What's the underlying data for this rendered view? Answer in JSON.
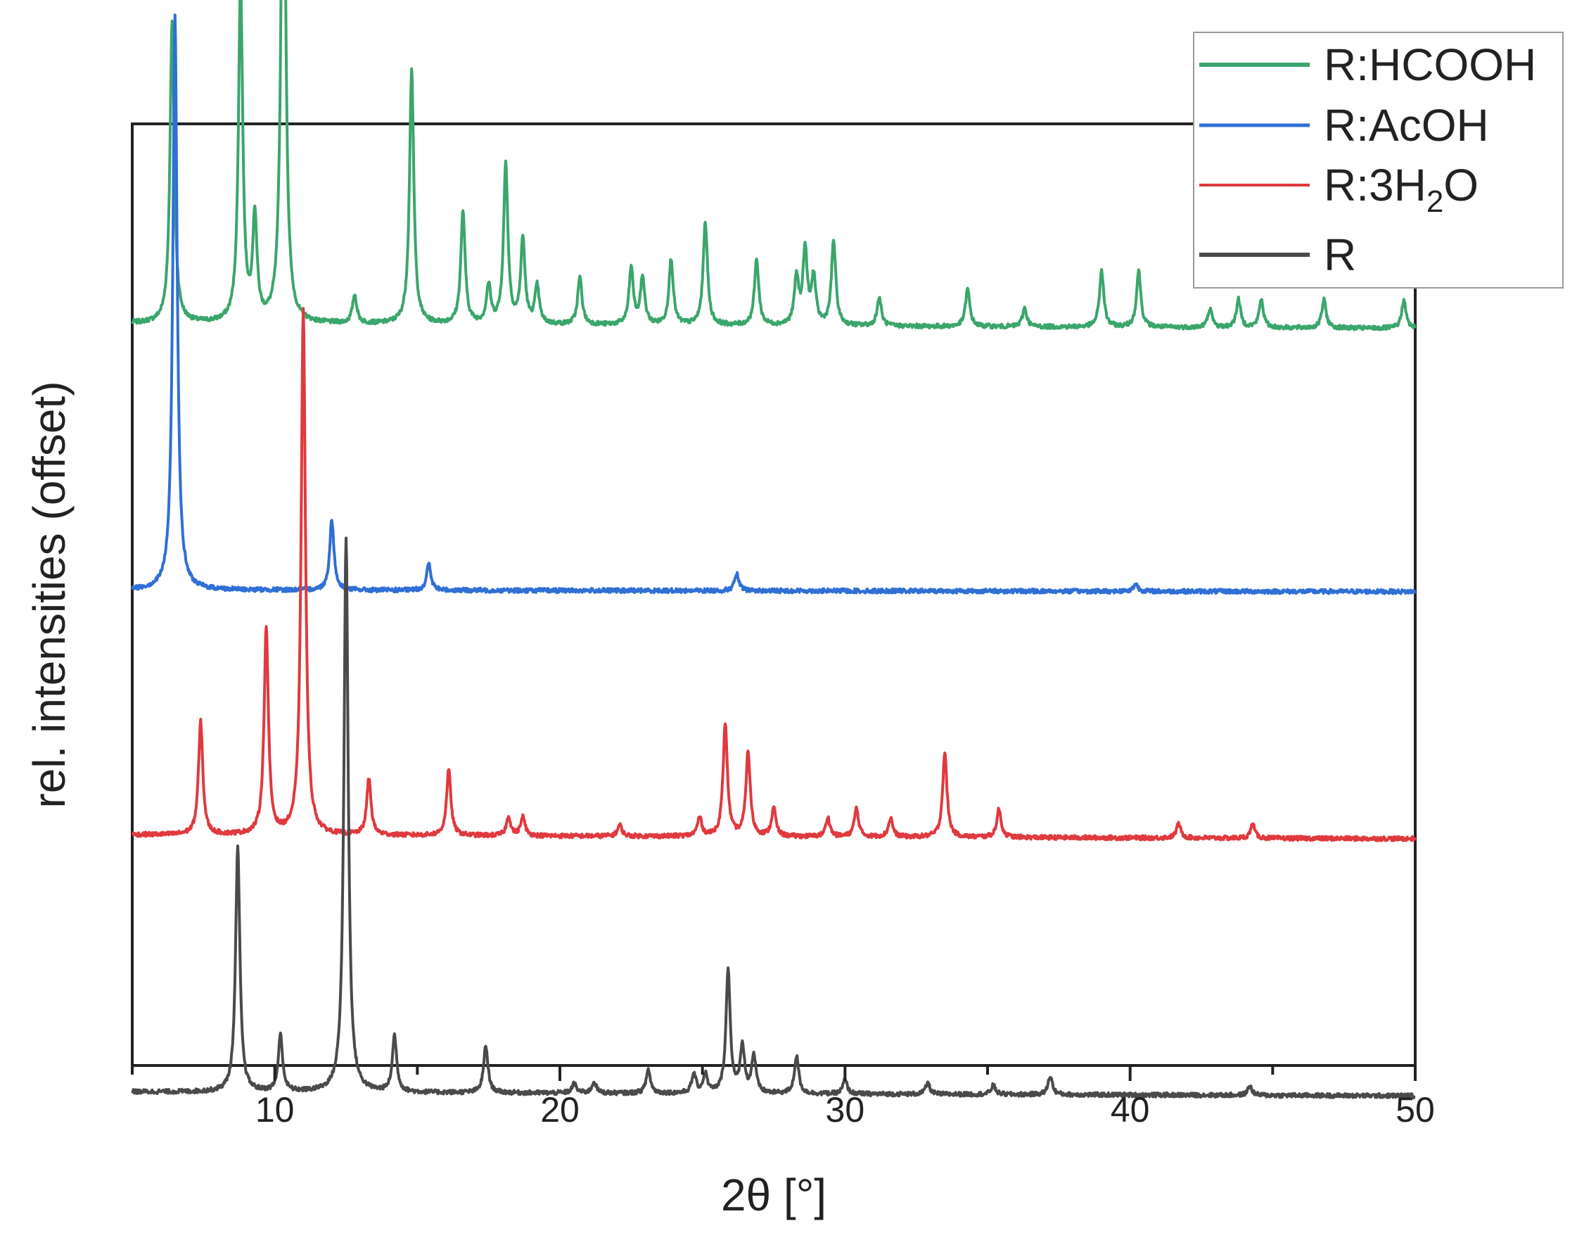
{
  "chart_data": {
    "type": "line",
    "title": "",
    "xlabel": "2θ [°]",
    "ylabel": "rel. intensities (offset)",
    "xlim": [
      5,
      50
    ],
    "x_ticks": [
      10,
      20,
      30,
      40,
      50
    ],
    "y_ticks_labeled": false,
    "grid": false,
    "legend_position": "top-right",
    "series": [
      {
        "name": "R:HCOOH",
        "color": "#3aa66b",
        "offset": 0.773,
        "baseline": 0.015,
        "peaks": [
          [
            6.4,
            0.32
          ],
          [
            8.8,
            0.36
          ],
          [
            9.3,
            0.11
          ],
          [
            10.3,
            0.64
          ],
          [
            12.8,
            0.03
          ],
          [
            14.8,
            0.27
          ],
          [
            16.6,
            0.12
          ],
          [
            17.5,
            0.04
          ],
          [
            18.1,
            0.17
          ],
          [
            18.7,
            0.09
          ],
          [
            19.2,
            0.04
          ],
          [
            20.7,
            0.05
          ],
          [
            22.5,
            0.06
          ],
          [
            22.9,
            0.05
          ],
          [
            23.9,
            0.07
          ],
          [
            25.1,
            0.11
          ],
          [
            26.9,
            0.07
          ],
          [
            28.3,
            0.05
          ],
          [
            28.6,
            0.08
          ],
          [
            28.9,
            0.05
          ],
          [
            29.6,
            0.09
          ],
          [
            31.2,
            0.03
          ],
          [
            34.3,
            0.04
          ],
          [
            36.3,
            0.02
          ],
          [
            39.0,
            0.06
          ],
          [
            40.3,
            0.06
          ],
          [
            42.8,
            0.02
          ],
          [
            43.8,
            0.03
          ],
          [
            44.6,
            0.03
          ],
          [
            46.8,
            0.03
          ],
          [
            49.6,
            0.03
          ]
        ]
      },
      {
        "name": "R:AcOH",
        "color": "#2f6fd6",
        "offset": 0.5,
        "baseline": 0.005,
        "peaks": [
          [
            6.5,
            0.61
          ],
          [
            12.0,
            0.075
          ],
          [
            15.4,
            0.028
          ],
          [
            26.2,
            0.018
          ],
          [
            40.2,
            0.008
          ]
        ]
      },
      {
        "name": "R:3H₂O",
        "color": "#e0393e",
        "offset": 0.233,
        "baseline": 0.012,
        "peaks": [
          [
            7.4,
            0.12
          ],
          [
            9.7,
            0.22
          ],
          [
            11.0,
            0.56
          ],
          [
            13.3,
            0.06
          ],
          [
            16.1,
            0.07
          ],
          [
            18.2,
            0.02
          ],
          [
            18.7,
            0.02
          ],
          [
            22.1,
            0.012
          ],
          [
            24.9,
            0.02
          ],
          [
            25.8,
            0.12
          ],
          [
            26.6,
            0.09
          ],
          [
            27.5,
            0.03
          ],
          [
            29.4,
            0.02
          ],
          [
            30.4,
            0.03
          ],
          [
            31.6,
            0.02
          ],
          [
            33.5,
            0.09
          ],
          [
            35.4,
            0.03
          ],
          [
            41.7,
            0.015
          ],
          [
            44.3,
            0.015
          ]
        ]
      },
      {
        "name": "R",
        "color": "#4a4a4a",
        "offset": -0.04,
        "baseline": 0.012,
        "peaks": [
          [
            8.7,
            0.26
          ],
          [
            10.2,
            0.06
          ],
          [
            12.5,
            0.59
          ],
          [
            14.2,
            0.06
          ],
          [
            17.4,
            0.05
          ],
          [
            20.5,
            0.01
          ],
          [
            21.2,
            0.012
          ],
          [
            23.1,
            0.025
          ],
          [
            24.7,
            0.02
          ],
          [
            25.1,
            0.02
          ],
          [
            25.9,
            0.13
          ],
          [
            26.4,
            0.05
          ],
          [
            26.8,
            0.04
          ],
          [
            28.3,
            0.04
          ],
          [
            30.0,
            0.015
          ],
          [
            32.9,
            0.012
          ],
          [
            35.2,
            0.01
          ],
          [
            37.2,
            0.02
          ],
          [
            44.2,
            0.01
          ]
        ]
      }
    ],
    "legend_items": [
      {
        "name": "R:HCOOH",
        "color": "#3aa66b"
      },
      {
        "name": "R:AcOH",
        "color": "#2f6fd6"
      },
      {
        "name": "R:3H",
        "sub": "2",
        "suffix": "O",
        "color": "#e0393e"
      },
      {
        "name": "R",
        "color": "#4a4a4a"
      }
    ]
  }
}
